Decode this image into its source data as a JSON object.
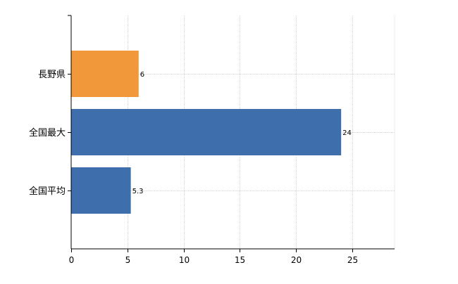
{
  "chart_data": {
    "type": "bar",
    "orientation": "horizontal",
    "categories": [
      "長野県",
      "全国最大",
      "全国平均"
    ],
    "values": [
      6,
      24,
      5.3
    ],
    "value_labels": [
      "6",
      "24",
      "5.3"
    ],
    "bar_colors": [
      "#f0983a",
      "#3e6eac",
      "#3e6eac"
    ],
    "xlim": [
      0,
      28.75
    ],
    "x_ticks": [
      0,
      5,
      10,
      15,
      20,
      25
    ],
    "x_tick_labels": [
      "0",
      "5",
      "10",
      "15",
      "20",
      "25"
    ],
    "grid": true,
    "legend": false,
    "title": "",
    "xlabel": "",
    "ylabel": ""
  },
  "colors": {
    "grid": "#d3d3d3",
    "axis": "#000000",
    "background": "#ffffff"
  }
}
